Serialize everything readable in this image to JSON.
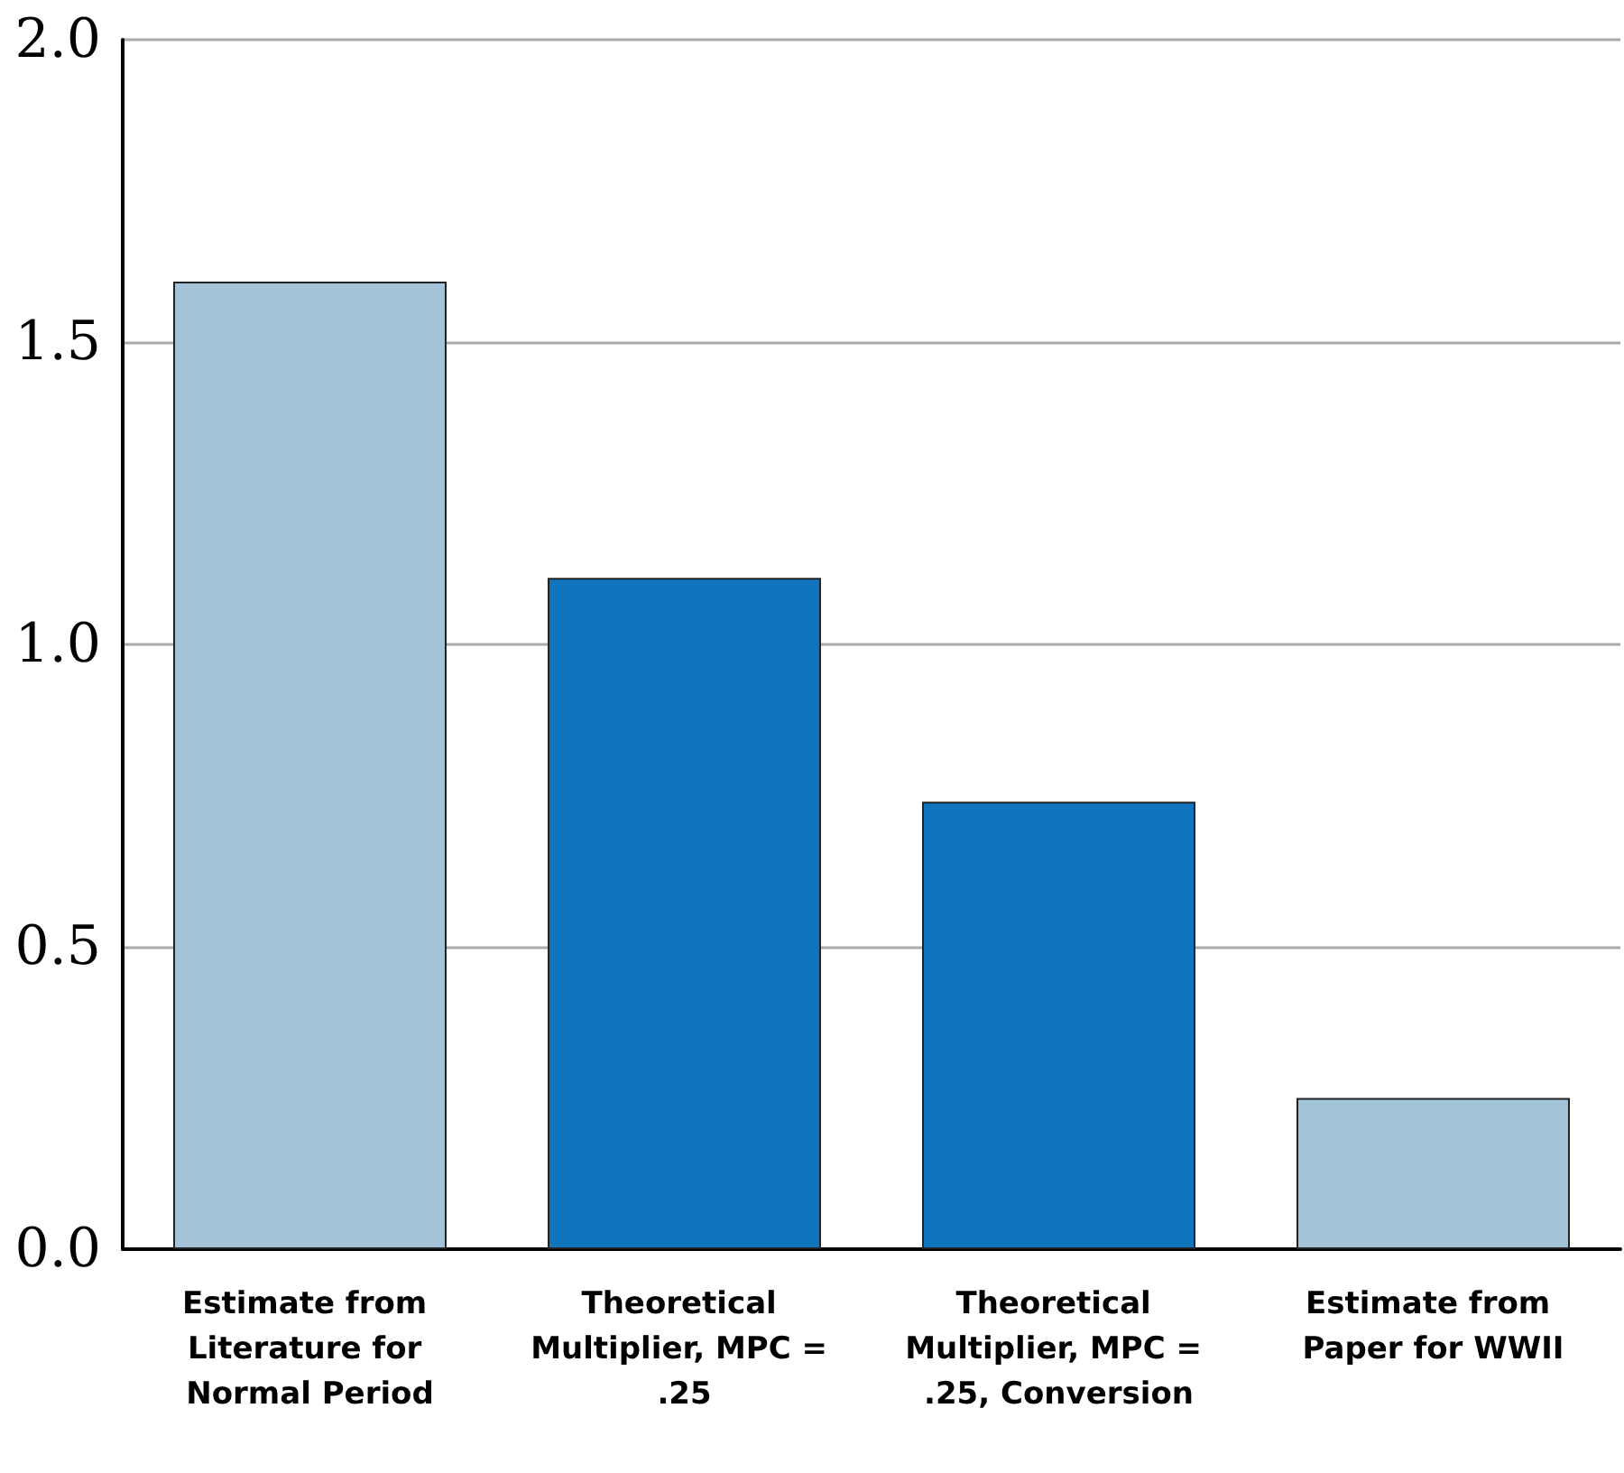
{
  "chart_data": {
    "type": "bar",
    "categories": [
      "Estimate from Literature for Normal Period",
      "Theoretical Multiplier, MPC = .25",
      "Theoretical Multiplier, MPC = .25, Conversion",
      "Estimate from Paper for WWII"
    ],
    "values": [
      1.6,
      1.11,
      0.74,
      0.25
    ],
    "colors": [
      "#a3c4d8",
      "#1175bd",
      "#1175bd",
      "#a3c4d8"
    ],
    "ylim": [
      0,
      2
    ],
    "yticks": [
      {
        "value": 0,
        "label": "0.0"
      },
      0.5,
      {
        "value": 1,
        "label": "1.0"
      },
      1.5,
      {
        "value": 2,
        "label": "2.0"
      }
    ],
    "grid": "y"
  }
}
